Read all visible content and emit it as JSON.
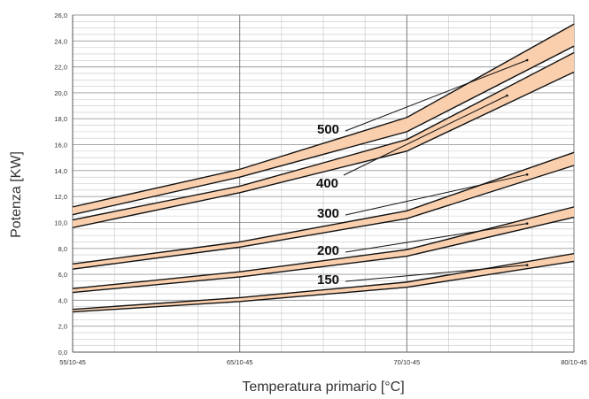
{
  "chart_data": {
    "type": "area",
    "title": "",
    "xlabel": "Temperatura primario [°C]",
    "ylabel": "Potenza [KW]",
    "categories": [
      "55/10-45",
      "65/10-45",
      "70/10-45",
      "80/10-45"
    ],
    "ylim": [
      0,
      26
    ],
    "yticks": [
      "0,0",
      "2,0",
      "4,0",
      "6,0",
      "8,0",
      "10,0",
      "12,0",
      "14,0",
      "16,0",
      "18,0",
      "20,0",
      "22,0",
      "24,0",
      "26,0"
    ],
    "grid": true,
    "band_color": "#f9cfae",
    "series": [
      {
        "name": "150",
        "lower": [
          3.1,
          3.9,
          5.0,
          7.0
        ],
        "upper": [
          3.3,
          4.2,
          5.4,
          7.6
        ]
      },
      {
        "name": "200",
        "lower": [
          4.6,
          5.8,
          7.4,
          10.4
        ],
        "upper": [
          4.9,
          6.2,
          7.9,
          11.2
        ]
      },
      {
        "name": "300",
        "lower": [
          6.4,
          8.1,
          10.3,
          14.4
        ],
        "upper": [
          6.8,
          8.5,
          10.9,
          15.4
        ]
      },
      {
        "name": "400",
        "lower": [
          9.6,
          12.3,
          15.5,
          21.6
        ],
        "upper": [
          10.2,
          12.8,
          16.4,
          23.1
        ]
      },
      {
        "name": "500",
        "lower": [
          10.6,
          13.5,
          17.0,
          23.6
        ],
        "upper": [
          11.2,
          14.1,
          18.1,
          25.3
        ]
      }
    ]
  }
}
